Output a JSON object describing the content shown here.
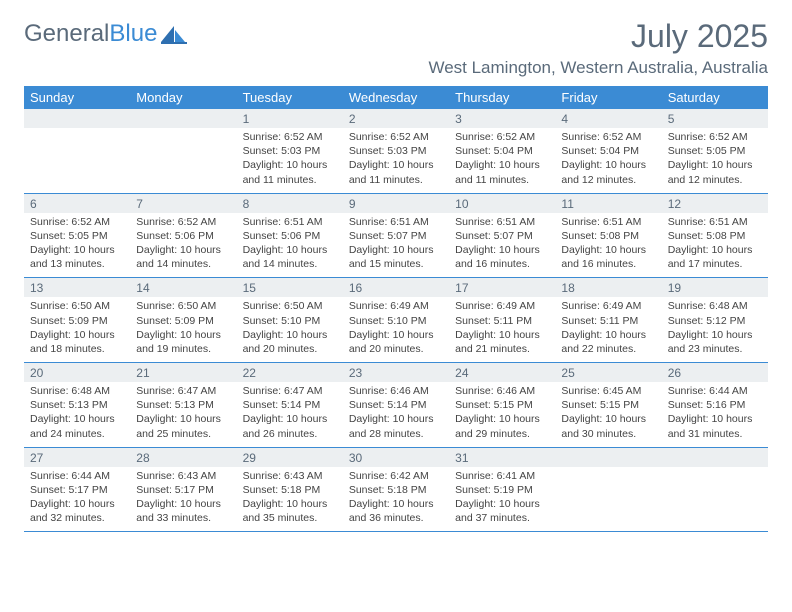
{
  "logo": {
    "text1": "General",
    "text2": "Blue"
  },
  "title": "July 2025",
  "location": "West Lamington, Western Australia, Australia",
  "colors": {
    "header_bg": "#3b8bd4",
    "header_text": "#ffffff",
    "daynum_bg": "#eceff1",
    "text_muted": "#5a6a7a",
    "text_body": "#444444",
    "rule": "#3b8bd4",
    "page_bg": "#ffffff"
  },
  "typography": {
    "month_title_size": 32,
    "location_size": 17,
    "day_header_size": 13,
    "daynum_size": 12,
    "details_size": 10.5
  },
  "dayNames": [
    "Sunday",
    "Monday",
    "Tuesday",
    "Wednesday",
    "Thursday",
    "Friday",
    "Saturday"
  ],
  "weeks": [
    [
      null,
      null,
      {
        "n": "1",
        "sr": "6:52 AM",
        "ss": "5:03 PM",
        "dl": "10 hours and 11 minutes."
      },
      {
        "n": "2",
        "sr": "6:52 AM",
        "ss": "5:03 PM",
        "dl": "10 hours and 11 minutes."
      },
      {
        "n": "3",
        "sr": "6:52 AM",
        "ss": "5:04 PM",
        "dl": "10 hours and 11 minutes."
      },
      {
        "n": "4",
        "sr": "6:52 AM",
        "ss": "5:04 PM",
        "dl": "10 hours and 12 minutes."
      },
      {
        "n": "5",
        "sr": "6:52 AM",
        "ss": "5:05 PM",
        "dl": "10 hours and 12 minutes."
      }
    ],
    [
      {
        "n": "6",
        "sr": "6:52 AM",
        "ss": "5:05 PM",
        "dl": "10 hours and 13 minutes."
      },
      {
        "n": "7",
        "sr": "6:52 AM",
        "ss": "5:06 PM",
        "dl": "10 hours and 14 minutes."
      },
      {
        "n": "8",
        "sr": "6:51 AM",
        "ss": "5:06 PM",
        "dl": "10 hours and 14 minutes."
      },
      {
        "n": "9",
        "sr": "6:51 AM",
        "ss": "5:07 PM",
        "dl": "10 hours and 15 minutes."
      },
      {
        "n": "10",
        "sr": "6:51 AM",
        "ss": "5:07 PM",
        "dl": "10 hours and 16 minutes."
      },
      {
        "n": "11",
        "sr": "6:51 AM",
        "ss": "5:08 PM",
        "dl": "10 hours and 16 minutes."
      },
      {
        "n": "12",
        "sr": "6:51 AM",
        "ss": "5:08 PM",
        "dl": "10 hours and 17 minutes."
      }
    ],
    [
      {
        "n": "13",
        "sr": "6:50 AM",
        "ss": "5:09 PM",
        "dl": "10 hours and 18 minutes."
      },
      {
        "n": "14",
        "sr": "6:50 AM",
        "ss": "5:09 PM",
        "dl": "10 hours and 19 minutes."
      },
      {
        "n": "15",
        "sr": "6:50 AM",
        "ss": "5:10 PM",
        "dl": "10 hours and 20 minutes."
      },
      {
        "n": "16",
        "sr": "6:49 AM",
        "ss": "5:10 PM",
        "dl": "10 hours and 20 minutes."
      },
      {
        "n": "17",
        "sr": "6:49 AM",
        "ss": "5:11 PM",
        "dl": "10 hours and 21 minutes."
      },
      {
        "n": "18",
        "sr": "6:49 AM",
        "ss": "5:11 PM",
        "dl": "10 hours and 22 minutes."
      },
      {
        "n": "19",
        "sr": "6:48 AM",
        "ss": "5:12 PM",
        "dl": "10 hours and 23 minutes."
      }
    ],
    [
      {
        "n": "20",
        "sr": "6:48 AM",
        "ss": "5:13 PM",
        "dl": "10 hours and 24 minutes."
      },
      {
        "n": "21",
        "sr": "6:47 AM",
        "ss": "5:13 PM",
        "dl": "10 hours and 25 minutes."
      },
      {
        "n": "22",
        "sr": "6:47 AM",
        "ss": "5:14 PM",
        "dl": "10 hours and 26 minutes."
      },
      {
        "n": "23",
        "sr": "6:46 AM",
        "ss": "5:14 PM",
        "dl": "10 hours and 28 minutes."
      },
      {
        "n": "24",
        "sr": "6:46 AM",
        "ss": "5:15 PM",
        "dl": "10 hours and 29 minutes."
      },
      {
        "n": "25",
        "sr": "6:45 AM",
        "ss": "5:15 PM",
        "dl": "10 hours and 30 minutes."
      },
      {
        "n": "26",
        "sr": "6:44 AM",
        "ss": "5:16 PM",
        "dl": "10 hours and 31 minutes."
      }
    ],
    [
      {
        "n": "27",
        "sr": "6:44 AM",
        "ss": "5:17 PM",
        "dl": "10 hours and 32 minutes."
      },
      {
        "n": "28",
        "sr": "6:43 AM",
        "ss": "5:17 PM",
        "dl": "10 hours and 33 minutes."
      },
      {
        "n": "29",
        "sr": "6:43 AM",
        "ss": "5:18 PM",
        "dl": "10 hours and 35 minutes."
      },
      {
        "n": "30",
        "sr": "6:42 AM",
        "ss": "5:18 PM",
        "dl": "10 hours and 36 minutes."
      },
      {
        "n": "31",
        "sr": "6:41 AM",
        "ss": "5:19 PM",
        "dl": "10 hours and 37 minutes."
      },
      null,
      null
    ]
  ],
  "labels": {
    "sunrise": "Sunrise:",
    "sunset": "Sunset:",
    "daylight": "Daylight:"
  }
}
